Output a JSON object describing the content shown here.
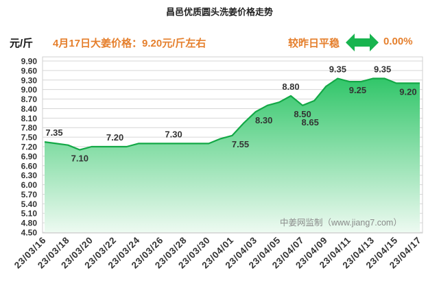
{
  "price_note": "4月17日大姜价格：9.20元/斤左右",
  "change_note": "较昨日平稳",
  "change_icon": "double-arrow-icon",
  "change_value": "0.00%",
  "watermark": "中姜网监制（www.jiang7.com）",
  "colors": {
    "accent_orange": "#e57f2c",
    "line": "#13a846",
    "area_top": "#1cc05a",
    "area_bottom": "#edfaf1",
    "arrow": "#18b44f"
  },
  "chart_data": {
    "type": "area",
    "title": "昌邑优质圆头洗姜价格走势",
    "ylabel": "元/斤",
    "ylim": [
      4.5,
      9.9
    ],
    "yticks": [
      "9.90",
      "9.60",
      "9.30",
      "9.00",
      "8.70",
      "8.40",
      "8.10",
      "7.80",
      "7.50",
      "7.20",
      "6.90",
      "6.60",
      "6.30",
      "6.00",
      "5.70",
      "5.40",
      "5.10",
      "4.80",
      "4.50"
    ],
    "grid": "horizontal",
    "x": [
      "23/03/16",
      "23/03/17",
      "23/03/18",
      "23/03/19",
      "23/03/20",
      "23/03/21",
      "23/03/22",
      "23/03/23",
      "23/03/24",
      "23/03/25",
      "23/03/26",
      "23/03/27",
      "23/03/28",
      "23/03/29",
      "23/03/30",
      "23/03/31",
      "23/04/01",
      "23/04/02",
      "23/04/03",
      "23/04/04",
      "23/04/05",
      "23/04/06",
      "23/04/07",
      "23/04/08",
      "23/04/09",
      "23/04/10",
      "23/04/11",
      "23/04/12",
      "23/04/13",
      "23/04/14",
      "23/04/15",
      "23/04/16",
      "23/04/17"
    ],
    "series": [
      {
        "values": [
          7.35,
          7.3,
          7.25,
          7.1,
          7.2,
          7.2,
          7.2,
          7.2,
          7.3,
          7.3,
          7.3,
          7.3,
          7.3,
          7.3,
          7.3,
          7.45,
          7.55,
          7.95,
          8.3,
          8.5,
          8.6,
          8.8,
          8.5,
          8.65,
          9.1,
          9.35,
          9.25,
          9.25,
          9.35,
          9.35,
          9.2,
          9.2,
          9.2
        ]
      }
    ],
    "data_labels": [
      {
        "x": "23/03/16",
        "text": "7.35",
        "placement": "above-right"
      },
      {
        "x": "23/03/19",
        "text": "7.10",
        "placement": "below"
      },
      {
        "x": "23/03/22",
        "text": "7.20",
        "placement": "above"
      },
      {
        "x": "23/03/27",
        "text": "7.30",
        "placement": "above"
      },
      {
        "x": "23/04/01",
        "text": "7.55",
        "placement": "below-right"
      },
      {
        "x": "23/04/03",
        "text": "8.30",
        "placement": "below-right"
      },
      {
        "x": "23/04/06",
        "text": "8.80",
        "placement": "above"
      },
      {
        "x": "23/04/07",
        "text": "8.50",
        "placement": "below"
      },
      {
        "x": "23/04/08",
        "text": "8.65",
        "placement": "well-below"
      },
      {
        "x": "23/04/10",
        "text": "9.35",
        "placement": "above"
      },
      {
        "x": "23/04/11",
        "text": "9.25",
        "placement": "below-right"
      },
      {
        "x": "23/04/13",
        "text": "9.35",
        "placement": "above-right"
      },
      {
        "x": "23/04/16",
        "text": "9.20",
        "placement": "below"
      }
    ]
  }
}
